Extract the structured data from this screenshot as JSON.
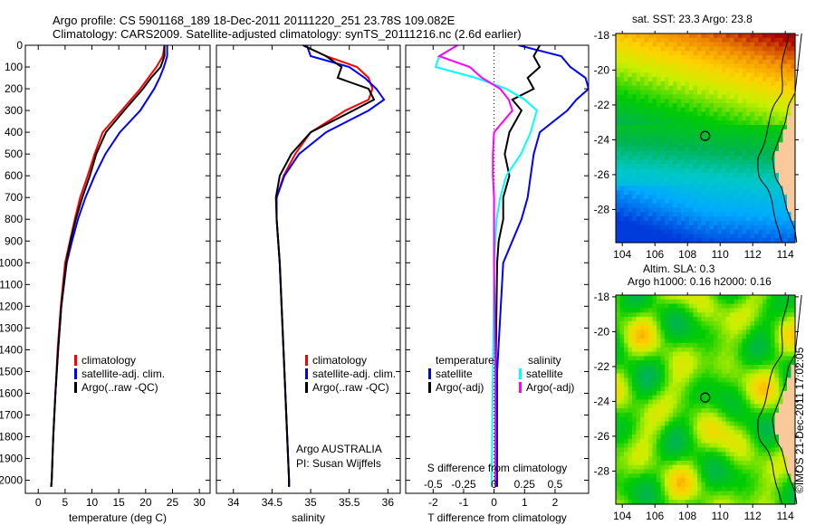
{
  "title_line1": "Argo profile: CS 5901168_189 18-Dec-2011 20111220_251 23.78S 109.082E",
  "title_line2": "Climatology: CARS2009. Satellite-adjusted climatology: synTS_20111216.nc (2.6d earlier)",
  "credit": "©IMOS 21-Dec-2011 17:02:05",
  "colors": {
    "climatology": "#ff0000",
    "satellite": "#0000ff",
    "argo": "#000000",
    "sal_satellite": "#00ffff",
    "sal_argo": "#ff00ff",
    "land": "#f9c89b"
  },
  "chart_data": [
    {
      "type": "line",
      "id": "temperature",
      "xlabel": "temperature (deg C)",
      "ylabel": "",
      "xlim": [
        -2.4,
        32
      ],
      "ylim": [
        2060,
        0
      ],
      "xticks": [
        0,
        5,
        10,
        15,
        20,
        25,
        30
      ],
      "yticks": [
        0,
        100,
        200,
        300,
        400,
        500,
        600,
        700,
        800,
        900,
        1000,
        1100,
        1200,
        1300,
        1400,
        1500,
        1600,
        1700,
        1800,
        1900,
        2000
      ],
      "legend": [
        "climatology",
        "satellite-adj. clim.",
        "Argo(..raw -QC)"
      ],
      "legend_placement": "lower-center",
      "depth": [
        0,
        50,
        100,
        150,
        200,
        300,
        400,
        500,
        600,
        700,
        800,
        900,
        1000,
        1200,
        1400,
        1600,
        1800,
        2000,
        2030
      ],
      "series": [
        {
          "name": "climatology",
          "values": [
            23.5,
            23.2,
            22,
            20.5,
            19,
            15.5,
            12,
            10.5,
            9.2,
            7.8,
            6.8,
            5.9,
            5.0,
            4.2,
            3.6,
            3.2,
            2.8,
            2.5,
            2.4
          ]
        },
        {
          "name": "satellite-adj. clim.",
          "values": [
            24,
            24,
            23.4,
            22.6,
            21.6,
            19,
            15.2,
            12.5,
            10.5,
            8.8,
            7.4,
            6.3,
            5.3,
            4.3,
            3.7,
            3.2,
            2.8,
            2.5,
            2.4
          ]
        },
        {
          "name": "Argo(..raw -QC)",
          "values": [
            23.5,
            23.5,
            22.8,
            21,
            19.5,
            16,
            12.6,
            10.8,
            9.6,
            8.2,
            7.0,
            6.0,
            5.2,
            4.3,
            3.7,
            3.2,
            2.8,
            2.5,
            2.4
          ]
        }
      ]
    },
    {
      "type": "line",
      "id": "salinity",
      "xlabel": "salinity",
      "xlim": [
        33.78,
        36.16
      ],
      "ylim": [
        2060,
        0
      ],
      "xticks": [
        34,
        34.5,
        35,
        35.5,
        36
      ],
      "legend": [
        "climatology",
        "satellite-adj. clim.",
        "Argo(..raw -QC)"
      ],
      "annotation": [
        "Argo AUSTRALIA",
        "PI: Susan Wijffels"
      ],
      "depth": [
        0,
        50,
        100,
        150,
        200,
        250,
        300,
        400,
        500,
        600,
        700,
        800,
        900,
        1000,
        1500,
        2000,
        2030
      ],
      "series": [
        {
          "name": "climatology",
          "values": [
            34.9,
            35.2,
            35.6,
            35.75,
            35.8,
            35.75,
            35.45,
            35.0,
            34.8,
            34.65,
            34.56,
            34.56,
            34.58,
            34.6,
            34.66,
            34.72,
            34.72
          ]
        },
        {
          "name": "satellite-adj. clim.",
          "values": [
            34.95,
            35.0,
            35.5,
            35.7,
            35.85,
            35.95,
            35.75,
            35.2,
            34.85,
            34.66,
            34.56,
            34.56,
            34.58,
            34.6,
            34.66,
            34.72,
            34.72
          ]
        },
        {
          "name": "Argo(..raw -QC)",
          "values": [
            34.9,
            35.2,
            35.4,
            35.35,
            35.75,
            35.82,
            35.55,
            35.0,
            34.75,
            34.6,
            34.55,
            34.56,
            34.58,
            34.6,
            34.66,
            34.72,
            34.72
          ]
        }
      ]
    },
    {
      "type": "line",
      "id": "differences",
      "xlabel": "T difference from climatology",
      "xlabel_top": "S difference from climatology",
      "xlim": [
        -2.9,
        3.1
      ],
      "xlim_s": [
        -0.5,
        0.5
      ],
      "xticks": [
        -2,
        -1,
        0,
        1,
        2
      ],
      "xticks_s": [
        -0.5,
        -0.25,
        0,
        0.25,
        0.5
      ],
      "xtick_labels_s": [
        "-0.5",
        "-0.25",
        "0",
        "0.25",
        "0.5"
      ],
      "ylim": [
        2060,
        0
      ],
      "legend_t_title": "temperature",
      "legend_s_title": "salinity",
      "legend": [
        "satellite",
        "Argo(-adj)",
        "satellite",
        "Argo(-adj)"
      ],
      "depth": [
        0,
        50,
        100,
        150,
        200,
        250,
        300,
        400,
        500,
        600,
        700,
        800,
        900,
        1000,
        1500,
        2000,
        2030
      ],
      "series": [
        {
          "name": "T satellite",
          "axis": "T",
          "values": [
            0.8,
            2.2,
            2.5,
            3.0,
            3.1,
            2.7,
            2.4,
            1.5,
            1.3,
            1.2,
            1.1,
            0.9,
            0.6,
            0.3,
            0.1,
            0.1,
            0.1
          ]
        },
        {
          "name": "T Argo(-adj)",
          "axis": "T",
          "values": [
            1.5,
            1.3,
            1.5,
            1.1,
            1.3,
            0.6,
            0.9,
            0.5,
            0.35,
            0.5,
            0.3,
            0.3,
            0.15,
            0.1,
            0.05,
            0.05,
            0.05
          ]
        },
        {
          "name": "S satellite",
          "axis": "S",
          "values": [
            -0.3,
            -0.45,
            -0.48,
            -0.15,
            0.1,
            0.25,
            0.35,
            0.3,
            0.22,
            0.1,
            0.05,
            0.02,
            0.01,
            0,
            -0.01,
            -0.02,
            -0.02
          ]
        },
        {
          "name": "S Argo(-adj)",
          "axis": "S",
          "values": [
            -0.3,
            -0.45,
            -0.2,
            -0.1,
            0.05,
            0.12,
            0.15,
            0.0,
            -0.01,
            -0.01,
            0,
            0,
            0,
            0,
            0.01,
            0.01,
            0.01
          ]
        }
      ]
    },
    {
      "type": "heatmap",
      "id": "sst-map",
      "title": "sat. SST: 23.3 Argo: 23.8",
      "xlim": [
        103.6,
        114.6
      ],
      "ylim": [
        -29.9,
        -17.9
      ],
      "xticks": [
        104,
        106,
        108,
        110,
        112,
        114
      ],
      "yticks": [
        -18,
        -20,
        -22,
        -24,
        -26,
        -28
      ],
      "marker": {
        "lon": 109.082,
        "lat": -23.78
      }
    },
    {
      "type": "heatmap",
      "id": "sla-map",
      "title_line1": "Altim. SLA: 0.3",
      "title_line2": "Argo h1000: 0.16 h2000: 0.16",
      "xlim": [
        103.6,
        114.6
      ],
      "ylim": [
        -29.9,
        -17.9
      ],
      "xticks": [
        104,
        106,
        108,
        110,
        112,
        114
      ],
      "yticks": [
        -18,
        -20,
        -22,
        -24,
        -26,
        -28
      ],
      "marker": {
        "lon": 109.082,
        "lat": -23.78
      }
    }
  ]
}
